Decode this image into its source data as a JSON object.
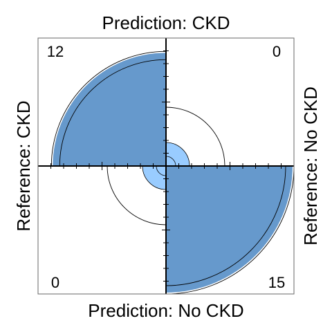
{
  "colors": {
    "background": "#ffffff",
    "frame": "#666666",
    "quadrant_fill": "#6699cc",
    "inner_fill": "#99ccff",
    "ring_stroke": "#000000",
    "axis_stroke": "#000000"
  },
  "chart_data": {
    "type": "fourfold",
    "title": "",
    "labels": {
      "top": "Prediction: CKD",
      "bottom": "Prediction: No CKD",
      "left": "Reference: CKD",
      "right": "Reference: No CKD"
    },
    "cells": [
      {
        "id": "tl",
        "reference": "CKD",
        "prediction": "CKD",
        "count": 12
      },
      {
        "id": "tr",
        "reference": "No CKD",
        "prediction": "CKD",
        "count": 0
      },
      {
        "id": "bl",
        "reference": "CKD",
        "prediction": "No CKD",
        "count": 0
      },
      {
        "id": "br",
        "reference": "No CKD",
        "prediction": "No CKD",
        "count": 15
      }
    ],
    "count_labels": {
      "tl": "12",
      "tr": "0",
      "bl": "0",
      "br": "15"
    },
    "confidence_rings": true,
    "axis_ticks": true
  }
}
